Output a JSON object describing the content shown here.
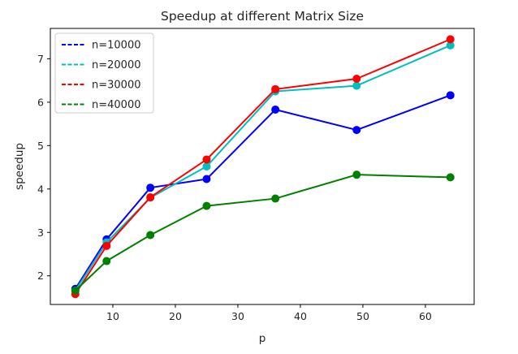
{
  "chart_data": {
    "type": "line",
    "title": "Speedup at different Matrix Size",
    "xlabel": "p",
    "ylabel": "speedup",
    "x": [
      4,
      9,
      16,
      25,
      36,
      49,
      64
    ],
    "xlim": [
      0.0,
      67.8
    ],
    "ylim": [
      1.34,
      7.7
    ],
    "xticks": [
      10,
      20,
      30,
      40,
      50,
      60
    ],
    "yticks": [
      2,
      3,
      4,
      5,
      6,
      7
    ],
    "grid": false,
    "legend_position": "upper-left",
    "markers": true,
    "series": [
      {
        "name": "n=10000",
        "color": "#0000ff",
        "values": [
          1.7,
          2.84,
          4.03,
          4.23,
          5.83,
          5.36,
          6.16
        ]
      },
      {
        "name": "n=20000",
        "color": "#00bfbf",
        "values": [
          1.66,
          2.77,
          3.8,
          4.52,
          6.25,
          6.38,
          7.31
        ]
      },
      {
        "name": "n=30000",
        "color": "#ff0000",
        "values": [
          1.58,
          2.69,
          3.81,
          4.68,
          6.3,
          6.54,
          7.45
        ]
      },
      {
        "name": "n=40000",
        "color": "#008000",
        "values": [
          1.66,
          2.34,
          2.94,
          3.61,
          3.78,
          4.33,
          4.27
        ]
      }
    ]
  }
}
